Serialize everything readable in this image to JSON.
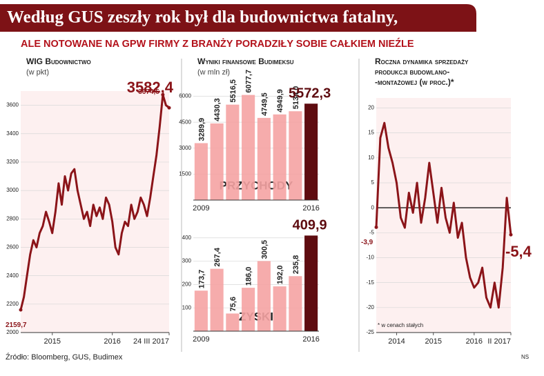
{
  "header": {
    "title": "Według GUS zeszły rok był dla budownictwa fatalny,",
    "subtitle": "ALE NOTOWANE NA GPW FIRMY Z BRANŻY PORADZIŁY SOBIE CAŁKIEM NIEŹLE"
  },
  "chart_data": [
    {
      "type": "line",
      "title": "WIG Budownictwo",
      "subtitle": "(w pkt)",
      "color": "#8b1419",
      "grid": true,
      "categories": [
        null,
        null,
        null,
        null,
        null,
        null,
        null,
        null,
        null,
        null,
        "2015",
        null,
        null,
        null,
        null,
        null,
        null,
        null,
        null,
        null,
        null,
        null,
        null,
        null,
        null,
        null,
        null,
        null,
        null,
        "2016",
        null,
        null,
        null,
        null,
        null,
        null,
        null,
        null,
        null,
        null,
        null,
        null,
        null,
        null,
        null,
        null,
        null,
        "24 III 2017"
      ],
      "values": [
        2159.7,
        2250,
        2400,
        2550,
        2650,
        2600,
        2700,
        2750,
        2850,
        2780,
        2700,
        2850,
        3050,
        2900,
        3100,
        3000,
        3120,
        3150,
        3000,
        2900,
        2800,
        2850,
        2750,
        2900,
        2820,
        2880,
        2800,
        2950,
        2900,
        2780,
        2600,
        2550,
        2700,
        2780,
        2750,
        2900,
        2800,
        2850,
        2950,
        2900,
        2820,
        2950,
        3100,
        3250,
        3450,
        3674.5,
        3600,
        3582.4
      ],
      "value_labels": [
        "2159,7",
        null,
        null,
        null,
        null,
        null,
        null,
        null,
        null,
        null,
        null,
        null,
        null,
        null,
        null,
        null,
        null,
        null,
        null,
        null,
        null,
        null,
        null,
        null,
        null,
        null,
        null,
        null,
        null,
        null,
        null,
        null,
        null,
        null,
        null,
        null,
        null,
        null,
        null,
        null,
        null,
        null,
        null,
        null,
        null,
        "3674,5",
        null,
        "3582,4"
      ],
      "ylim": [
        2000,
        3700
      ],
      "yticks": [
        2000,
        2200,
        2400,
        2600,
        2800,
        3000,
        3200,
        3400,
        3600
      ]
    },
    {
      "type": "bar",
      "title": "Wyniki finansowe Budimeksu",
      "subtitle": "(w mln zł)",
      "label": "PRZYCHODY",
      "categories": [
        "2009",
        null,
        null,
        null,
        null,
        null,
        null,
        "2016"
      ],
      "values": [
        3289.9,
        4430.3,
        5516.5,
        6077.7,
        4749.5,
        4949.9,
        5134.0,
        5572.3
      ],
      "value_labels": [
        "3289,9",
        "4430,3",
        "5516,5",
        "6077,7",
        "4749,5",
        "4949,9",
        "5134,0",
        "5572,3"
      ],
      "colors": [
        "#f5a3a3",
        "#f5a3a3",
        "#f5a3a3",
        "#f5a3a3",
        "#f5a3a3",
        "#f5a3a3",
        "#f5a3a3",
        "#5e0c10"
      ],
      "ylim": [
        0,
        6300
      ],
      "yticks": [
        1500,
        3000,
        4500,
        6000
      ],
      "grid": true
    },
    {
      "type": "bar",
      "label": "ZYSKI",
      "categories": [
        "2009",
        null,
        null,
        null,
        null,
        null,
        null,
        "2016"
      ],
      "values": [
        173.7,
        267.4,
        75.6,
        186.0,
        300.5,
        192.0,
        235.8,
        409.9
      ],
      "value_labels": [
        "173,7",
        "267,4",
        "75,6",
        "186,0",
        "300,5",
        "192,0",
        "235,8",
        "409,9"
      ],
      "colors": [
        "#f5a3a3",
        "#f5a3a3",
        "#f5a3a3",
        "#f5a3a3",
        "#f5a3a3",
        "#f5a3a3",
        "#f5a3a3",
        "#5e0c10"
      ],
      "ylim": [
        0,
        420
      ],
      "yticks": [
        100,
        200,
        300,
        400
      ],
      "grid": true
    },
    {
      "type": "line",
      "title": [
        "Roczna dynamika sprzedaży",
        "produkcji budowlano-",
        "-montażowej (w proc.)*"
      ],
      "note": "* w cenach stałych",
      "color": "#8b1419",
      "grid": true,
      "categories": [
        null,
        null,
        null,
        null,
        null,
        "2014",
        null,
        null,
        null,
        null,
        null,
        null,
        null,
        null,
        "2015",
        null,
        null,
        null,
        null,
        null,
        null,
        null,
        null,
        null,
        "2016",
        null,
        null,
        null,
        null,
        null,
        null,
        null,
        null,
        "II 2017"
      ],
      "values": [
        -3.9,
        14,
        17,
        12,
        9,
        5,
        -2,
        -4,
        3,
        -1,
        5,
        -3,
        2,
        9,
        3,
        -3,
        4,
        -2,
        -5,
        1,
        -6,
        -3,
        -10,
        -14,
        -16,
        -15,
        -12,
        -18,
        -20,
        -15,
        -20,
        -12,
        2,
        -5.4
      ],
      "value_labels": [
        "-3,9",
        null,
        null,
        null,
        null,
        null,
        null,
        null,
        null,
        null,
        null,
        null,
        null,
        null,
        null,
        null,
        null,
        null,
        null,
        null,
        null,
        null,
        null,
        null,
        null,
        null,
        null,
        null,
        null,
        null,
        null,
        null,
        null,
        "-5,4"
      ],
      "ylim": [
        -25,
        22
      ],
      "yticks": [
        -25,
        -20,
        -15,
        -10,
        -5,
        0,
        5,
        10,
        15,
        20
      ]
    }
  ],
  "footer": {
    "source": "Źródło: Bloomberg, GUS, Budimex",
    "signature": "NS"
  }
}
